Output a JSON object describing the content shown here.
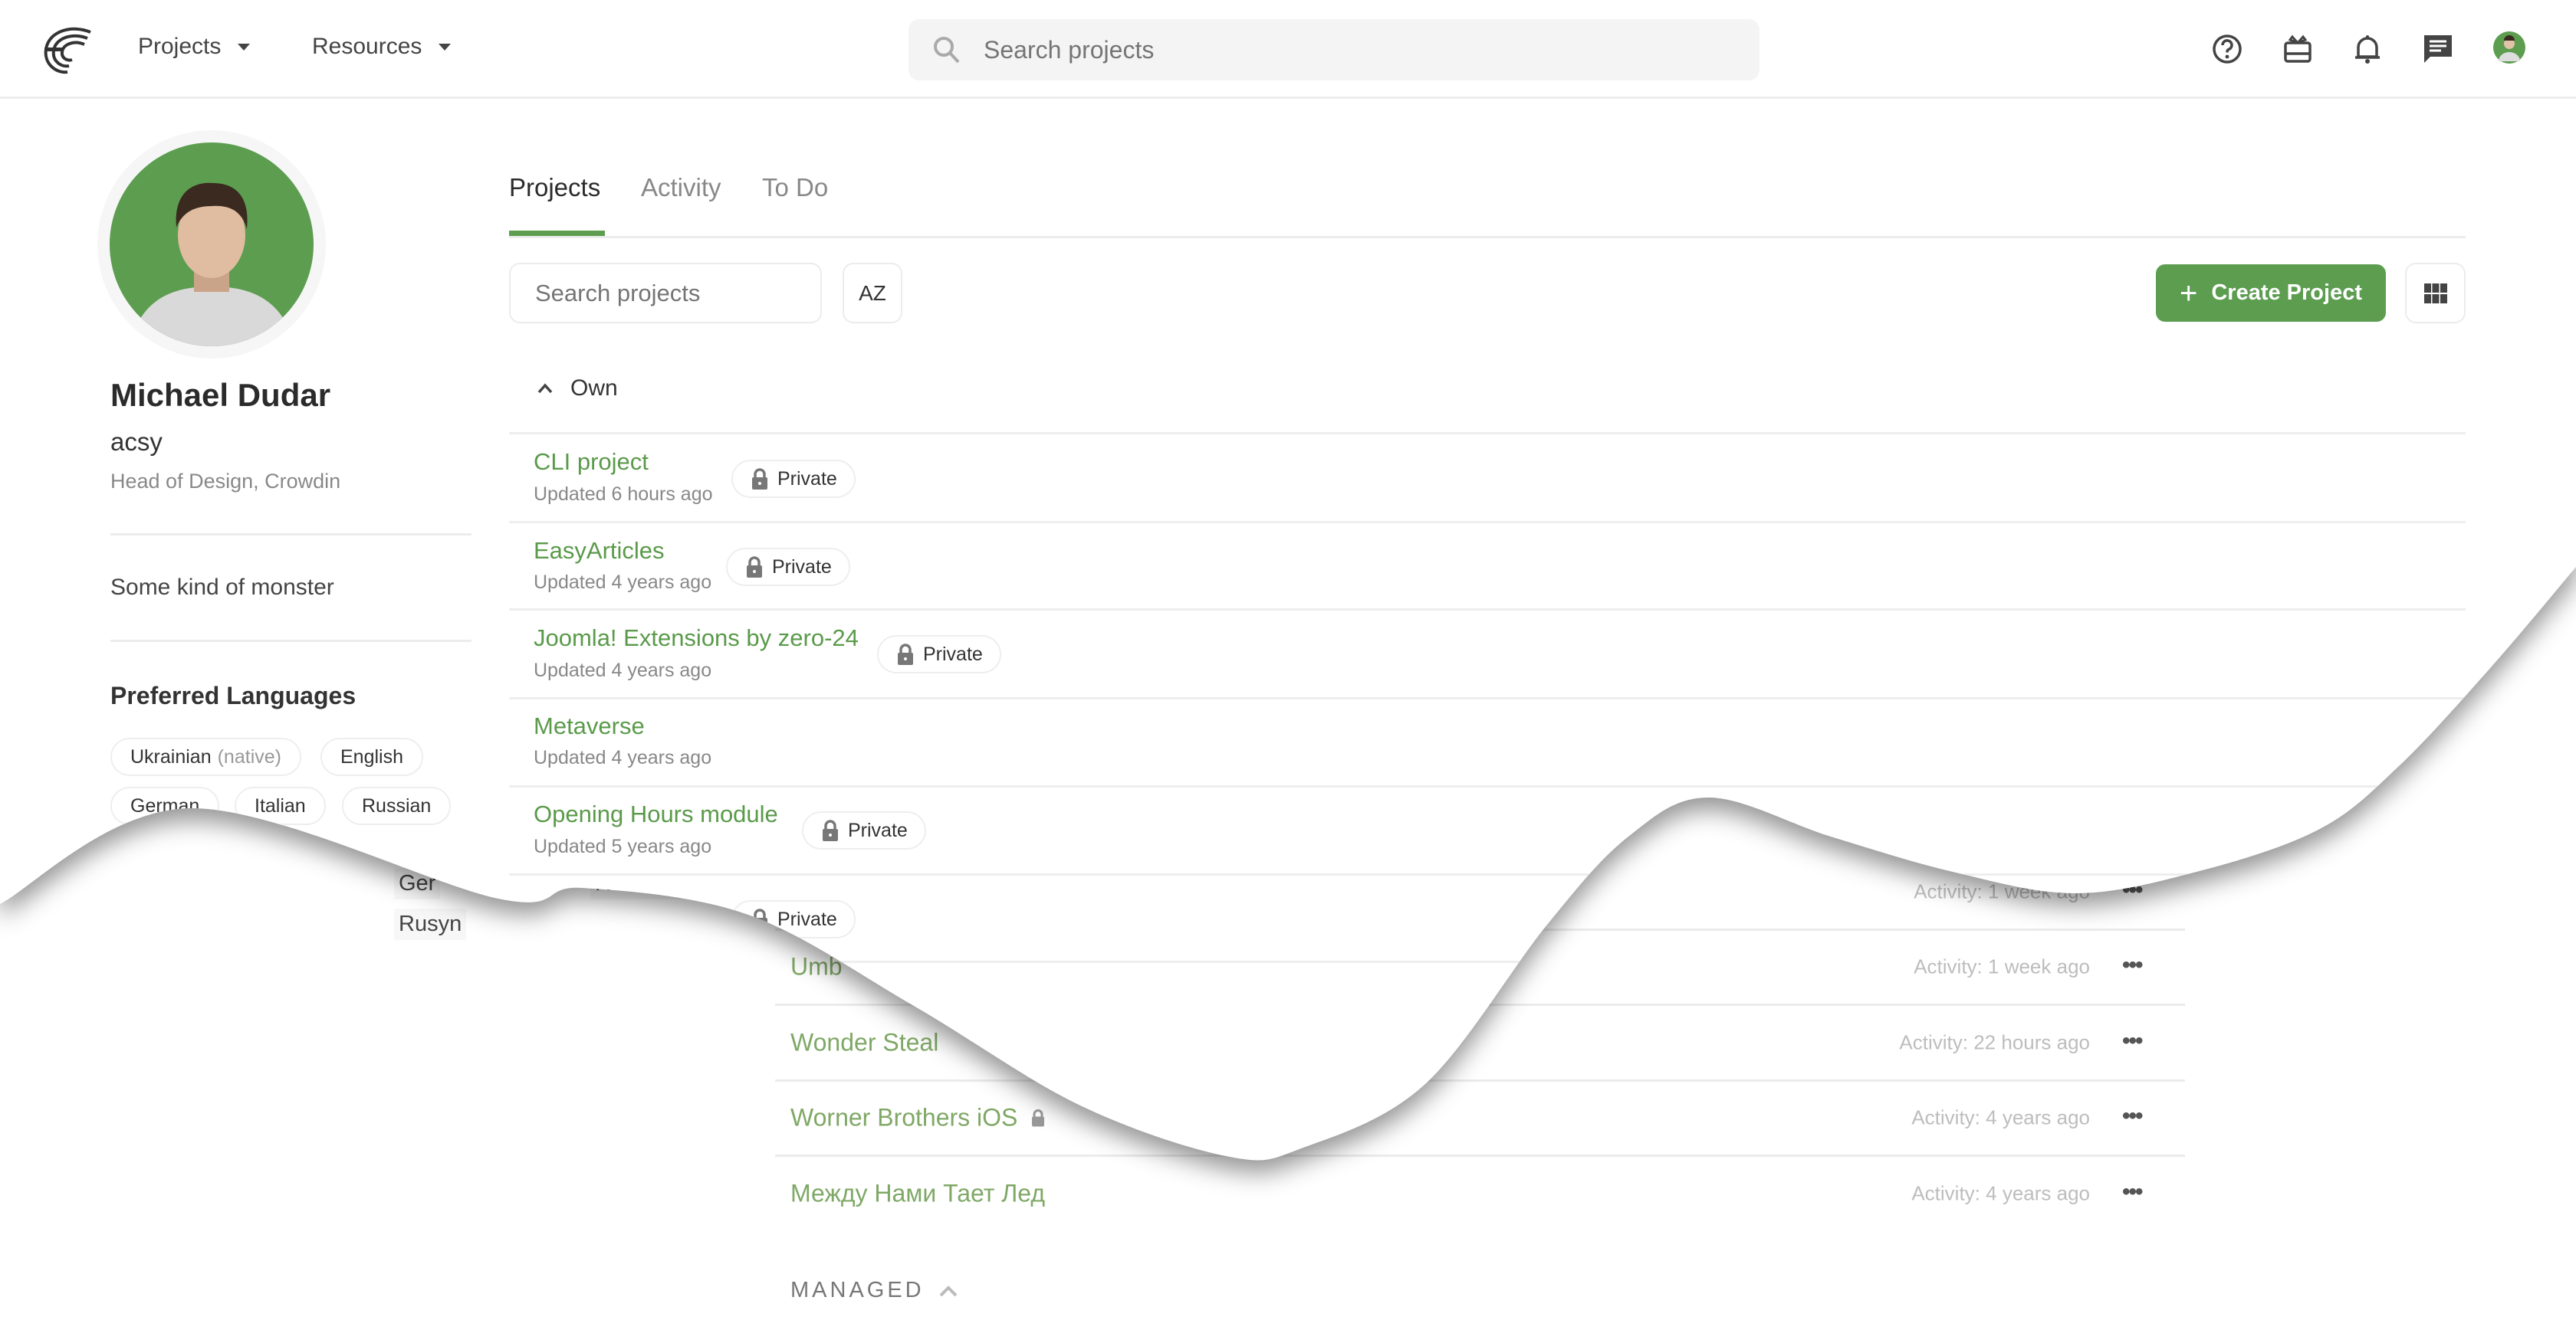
{
  "header": {
    "nav": [
      {
        "label": "Projects"
      },
      {
        "label": "Resources"
      }
    ],
    "search_placeholder": "Search projects",
    "icons": [
      "crowdin-logo-icon",
      "help-icon",
      "gift-icon",
      "bell-icon",
      "chat-icon",
      "user-avatar"
    ]
  },
  "profile": {
    "name": "Michael Dudar",
    "username": "acsy",
    "title": "Head of Design, Crowdin",
    "bio": "Some kind of monster",
    "languages_title": "Preferred Languages",
    "languages": [
      {
        "name": "Ukrainian",
        "note": "(native)"
      },
      {
        "name": "English"
      },
      {
        "name": "German"
      },
      {
        "name": "Italian"
      },
      {
        "name": "Russian"
      }
    ]
  },
  "tabs": [
    {
      "label": "Projects",
      "active": true
    },
    {
      "label": "Activity"
    },
    {
      "label": "To Do"
    }
  ],
  "toolbar": {
    "search_placeholder": "Search projects",
    "sort_label": "AZ",
    "create_label": "Create Project"
  },
  "section_own": "Own",
  "projects": [
    {
      "name": "CLI project",
      "updated": "Updated 6 hours ago",
      "visibility": "Private"
    },
    {
      "name": "EasyArticles",
      "updated": "Updated 4 years ago",
      "visibility": "Private"
    },
    {
      "name": "Joomla! Extensions by zero-24",
      "updated": "Updated 4 years ago",
      "visibility": "Private"
    },
    {
      "name": "Metaverse",
      "updated": "Updated 4 years ago"
    },
    {
      "name": "Opening Hours module",
      "updated": "Updated 5 years ago",
      "visibility": "Private"
    },
    {
      "visibility": "Private"
    }
  ],
  "legacy": {
    "languages": [
      "Ger",
      "Russian",
      "Rusyn"
    ],
    "top_activity": "Activity: 1 week ago",
    "projects": [
      {
        "name": "Umb",
        "activity": "Activity: 1 week ago"
      },
      {
        "name": "Wonder Steal",
        "activity": "Activity: 22 hours ago"
      },
      {
        "name": "Worner Brothers iOS",
        "activity": "Activity: 4 years ago",
        "locked": true
      },
      {
        "name": "Между Нами Тает Лед",
        "activity": "Activity: 4 years ago"
      }
    ],
    "managed_label": "MANAGED"
  },
  "colors": {
    "accent": "#5c9d50",
    "link": "#5a9a4a",
    "legacy_link": "#7fa866"
  }
}
